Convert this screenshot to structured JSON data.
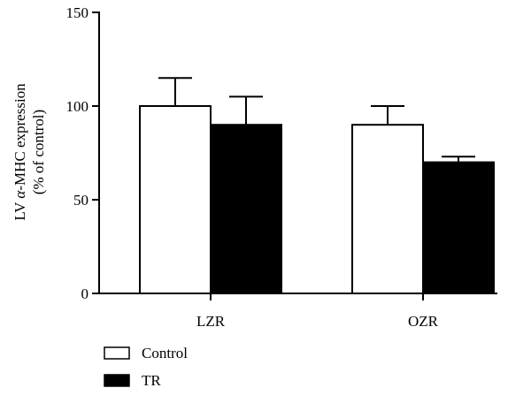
{
  "chart_data": {
    "type": "bar",
    "categories": [
      "LZR",
      "OZR"
    ],
    "series": [
      {
        "name": "Control",
        "values": [
          100,
          90
        ],
        "error": [
          15,
          10
        ],
        "color": "#ffffff"
      },
      {
        "name": "TR",
        "values": [
          90,
          70
        ],
        "error": [
          15,
          3
        ],
        "color": "#000000"
      }
    ],
    "ylim": [
      0,
      150
    ],
    "yticks": [
      0,
      50,
      100,
      150
    ],
    "ylabel_line1_prefix": "LV ",
    "ylabel_line1_greek": "α",
    "ylabel_line1_suffix": "-MHC expression",
    "ylabel_line2": "(% of control)",
    "xlabel": "",
    "title": "",
    "grid": false,
    "legend_position": "bottom-left"
  }
}
